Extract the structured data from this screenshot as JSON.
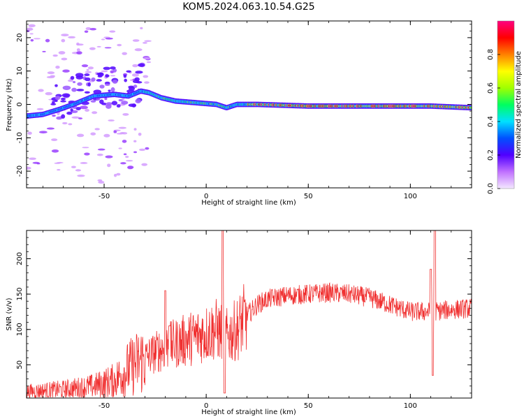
{
  "title": "KOM5.2024.063.10.54.G25",
  "chart_data": [
    {
      "type": "heatmap",
      "xlabel": "Height of straight line (km)",
      "ylabel": "Frequency (Hz)",
      "xlim": [
        -88,
        130
      ],
      "ylim": [
        -25,
        25
      ],
      "xticks": [
        -50,
        0,
        50,
        100
      ],
      "yticks": [
        20,
        10,
        0,
        -10,
        -20
      ],
      "colorbar": {
        "label": "Normalized spectral amplitude",
        "range": [
          0,
          1
        ],
        "ticks": [
          "0.0",
          "0.2",
          "0.4",
          "0.6",
          "0.8"
        ],
        "colors": [
          "#f4e8ff",
          "#c070ff",
          "#5000ff",
          "#0050ff",
          "#00e0ff",
          "#00ff60",
          "#a0ff00",
          "#ffff00",
          "#ff8000",
          "#ff0000",
          "#ff0080"
        ]
      },
      "ridge": [
        {
          "x": -88,
          "f": -3.5
        },
        {
          "x": -80,
          "f": -3
        },
        {
          "x": -72,
          "f": -1.5
        },
        {
          "x": -65,
          "f": 0
        },
        {
          "x": -55,
          "f": 2.5
        },
        {
          "x": -45,
          "f": 3
        },
        {
          "x": -38,
          "f": 2.5
        },
        {
          "x": -32,
          "f": 4
        },
        {
          "x": -28,
          "f": 3.5
        },
        {
          "x": -22,
          "f": 2
        },
        {
          "x": -15,
          "f": 1
        },
        {
          "x": -5,
          "f": 0.5
        },
        {
          "x": 5,
          "f": 0
        },
        {
          "x": 10,
          "f": -1
        },
        {
          "x": 15,
          "f": 0
        },
        {
          "x": 25,
          "f": 0
        },
        {
          "x": 50,
          "f": -0.5
        },
        {
          "x": 80,
          "f": -0.5
        },
        {
          "x": 110,
          "f": -0.5
        },
        {
          "x": 130,
          "f": -1
        }
      ]
    },
    {
      "type": "line",
      "xlabel": "Height of straight line (km)",
      "ylabel": "SNR (v/v)",
      "xlim": [
        -88,
        130
      ],
      "ylim": [
        3,
        240
      ],
      "xticks": [
        -50,
        0,
        50,
        100
      ],
      "yticks": [
        50,
        100,
        150,
        200
      ],
      "color": "#f03030",
      "envelope": [
        {
          "x": -88,
          "y": 12
        },
        {
          "x": -70,
          "y": 15
        },
        {
          "x": -55,
          "y": 20
        },
        {
          "x": -45,
          "y": 28
        },
        {
          "x": -38,
          "y": 45
        },
        {
          "x": -30,
          "y": 60
        },
        {
          "x": -20,
          "y": 75
        },
        {
          "x": -10,
          "y": 85
        },
        {
          "x": 0,
          "y": 95
        },
        {
          "x": 5,
          "y": 100
        },
        {
          "x": 10,
          "y": 90
        },
        {
          "x": 15,
          "y": 100
        },
        {
          "x": 20,
          "y": 120
        },
        {
          "x": 25,
          "y": 135
        },
        {
          "x": 30,
          "y": 143
        },
        {
          "x": 40,
          "y": 148
        },
        {
          "x": 50,
          "y": 150
        },
        {
          "x": 60,
          "y": 152
        },
        {
          "x": 70,
          "y": 150
        },
        {
          "x": 80,
          "y": 145
        },
        {
          "x": 90,
          "y": 135
        },
        {
          "x": 100,
          "y": 125
        },
        {
          "x": 105,
          "y": 125
        },
        {
          "x": 110,
          "y": 125
        },
        {
          "x": 120,
          "y": 128
        },
        {
          "x": 130,
          "y": 130
        }
      ],
      "spikes": [
        {
          "x": -20,
          "y": 155
        },
        {
          "x": -18,
          "y": 105
        },
        {
          "x": 8,
          "y": 240
        },
        {
          "x": 9,
          "y": 10
        },
        {
          "x": 110,
          "y": 185
        },
        {
          "x": 111,
          "y": 35
        },
        {
          "x": 112,
          "y": 240
        }
      ]
    }
  ]
}
